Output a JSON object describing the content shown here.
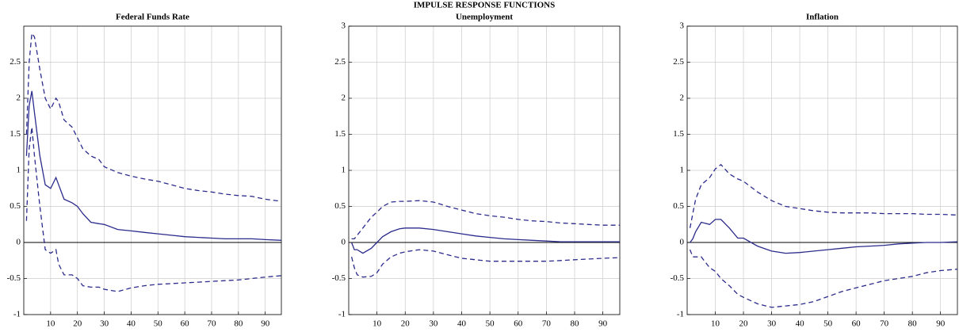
{
  "title": "IMPULSE RESPONSE FUNCTIONS",
  "chart_data": [
    {
      "type": "line",
      "title": "Federal Funds Rate",
      "x": [
        1,
        2,
        3,
        4,
        6,
        8,
        10,
        12,
        13,
        15,
        18,
        20,
        22,
        25,
        28,
        30,
        35,
        40,
        45,
        50,
        55,
        60,
        65,
        70,
        75,
        80,
        85,
        90,
        96
      ],
      "series": [
        {
          "color": "#2b2b8c",
          "linestyle": "dashed",
          "values": [
            1.5,
            2.5,
            2.9,
            2.85,
            2.4,
            2.0,
            1.85,
            2.0,
            1.95,
            1.7,
            1.6,
            1.45,
            1.3,
            1.2,
            1.15,
            1.05,
            0.97,
            0.92,
            0.88,
            0.85,
            0.8,
            0.75,
            0.72,
            0.7,
            0.67,
            0.65,
            0.64,
            0.6,
            0.57
          ]
        },
        {
          "color": "#2b2b8c",
          "linestyle": "solid",
          "values": [
            1.2,
            1.9,
            2.1,
            1.8,
            1.2,
            0.8,
            0.75,
            0.9,
            0.8,
            0.6,
            0.55,
            0.5,
            0.4,
            0.28,
            0.26,
            0.25,
            0.18,
            0.16,
            0.14,
            0.12,
            0.1,
            0.08,
            0.07,
            0.06,
            0.05,
            0.05,
            0.05,
            0.04,
            0.03
          ]
        },
        {
          "color": "#2b2b8c",
          "linestyle": "dashed",
          "values": [
            0.3,
            1.3,
            1.6,
            1.2,
            0.5,
            -0.1,
            -0.15,
            -0.1,
            -0.3,
            -0.45,
            -0.45,
            -0.5,
            -0.6,
            -0.62,
            -0.62,
            -0.65,
            -0.68,
            -0.63,
            -0.6,
            -0.58,
            -0.57,
            -0.56,
            -0.55,
            -0.54,
            -0.53,
            -0.52,
            -0.5,
            -0.48,
            -0.46
          ]
        }
      ],
      "xlim": [
        0,
        96
      ],
      "xticks": [
        10,
        20,
        30,
        40,
        50,
        60,
        70,
        80,
        90
      ],
      "ylim": [
        -1,
        3
      ],
      "yticks": [
        -1,
        -0.5,
        0,
        0.5,
        1,
        1.5,
        2,
        2.5
      ],
      "grid": true,
      "zero_line": true
    },
    {
      "type": "line",
      "title": "Unemployment",
      "x": [
        1,
        2,
        3,
        5,
        8,
        10,
        12,
        15,
        18,
        20,
        25,
        30,
        35,
        40,
        45,
        50,
        55,
        60,
        65,
        70,
        75,
        80,
        85,
        90,
        96
      ],
      "series": [
        {
          "color": "#2b2b8c",
          "linestyle": "dashed",
          "values": [
            0.05,
            0.05,
            0.1,
            0.2,
            0.35,
            0.42,
            0.5,
            0.56,
            0.57,
            0.57,
            0.58,
            0.56,
            0.5,
            0.45,
            0.4,
            0.37,
            0.35,
            0.32,
            0.3,
            0.29,
            0.27,
            0.26,
            0.25,
            0.24,
            0.24
          ]
        },
        {
          "color": "#2b2b8c",
          "linestyle": "solid",
          "values": [
            0,
            -0.1,
            -0.1,
            -0.15,
            -0.08,
            0,
            0.08,
            0.15,
            0.19,
            0.2,
            0.2,
            0.18,
            0.15,
            0.12,
            0.09,
            0.07,
            0.05,
            0.04,
            0.03,
            0.02,
            0.01,
            0.01,
            0.01,
            0.01,
            0.01
          ]
        },
        {
          "color": "#2b2b8c",
          "linestyle": "dashed",
          "values": [
            -0.2,
            -0.35,
            -0.45,
            -0.48,
            -0.47,
            -0.42,
            -0.3,
            -0.2,
            -0.15,
            -0.13,
            -0.1,
            -0.12,
            -0.17,
            -0.22,
            -0.24,
            -0.26,
            -0.26,
            -0.26,
            -0.26,
            -0.26,
            -0.25,
            -0.24,
            -0.23,
            -0.22,
            -0.21
          ]
        }
      ],
      "xlim": [
        0,
        96
      ],
      "xticks": [
        10,
        20,
        30,
        40,
        50,
        60,
        70,
        80,
        90
      ],
      "ylim": [
        -1,
        3
      ],
      "yticks": [
        -1,
        -0.5,
        0,
        0.5,
        1,
        1.5,
        2,
        2.5,
        3
      ],
      "grid": true,
      "zero_line": true
    },
    {
      "type": "line",
      "title": "Inflation",
      "x": [
        1,
        2,
        3,
        5,
        8,
        10,
        12,
        15,
        18,
        20,
        25,
        30,
        35,
        40,
        45,
        50,
        55,
        60,
        65,
        70,
        75,
        80,
        85,
        90,
        96
      ],
      "series": [
        {
          "color": "#2b2b8c",
          "linestyle": "dashed",
          "values": [
            0.2,
            0.4,
            0.6,
            0.8,
            0.9,
            1.02,
            1.08,
            0.95,
            0.88,
            0.85,
            0.7,
            0.58,
            0.5,
            0.47,
            0.44,
            0.42,
            0.41,
            0.41,
            0.41,
            0.4,
            0.4,
            0.4,
            0.39,
            0.39,
            0.38
          ]
        },
        {
          "color": "#2b2b8c",
          "linestyle": "solid",
          "values": [
            0,
            0.05,
            0.15,
            0.28,
            0.25,
            0.32,
            0.32,
            0.2,
            0.06,
            0.06,
            -0.05,
            -0.12,
            -0.15,
            -0.14,
            -0.12,
            -0.1,
            -0.08,
            -0.06,
            -0.05,
            -0.04,
            -0.02,
            -0.01,
            0,
            0,
            0.01
          ]
        },
        {
          "color": "#2b2b8c",
          "linestyle": "dashed",
          "values": [
            -0.1,
            -0.2,
            -0.2,
            -0.2,
            -0.35,
            -0.4,
            -0.5,
            -0.6,
            -0.72,
            -0.76,
            -0.85,
            -0.9,
            -0.88,
            -0.86,
            -0.82,
            -0.75,
            -0.68,
            -0.63,
            -0.58,
            -0.53,
            -0.5,
            -0.47,
            -0.42,
            -0.39,
            -0.37
          ]
        }
      ],
      "xlim": [
        0,
        96
      ],
      "xticks": [
        10,
        20,
        30,
        40,
        50,
        60,
        70,
        80,
        90
      ],
      "ylim": [
        -1,
        3
      ],
      "yticks": [
        -1,
        -0.5,
        0,
        0.5,
        1,
        1.5,
        2,
        2.5,
        3
      ],
      "grid": true,
      "zero_line": true
    }
  ]
}
